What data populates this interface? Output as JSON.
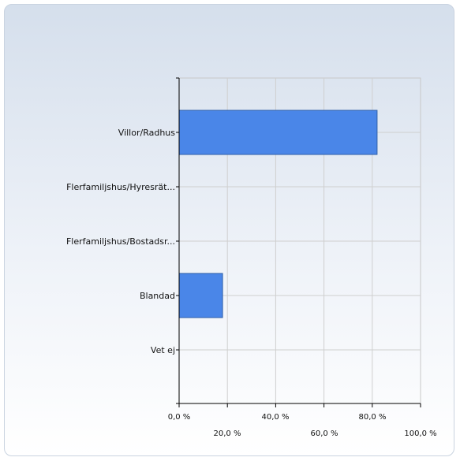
{
  "chart_data": {
    "type": "bar",
    "orientation": "horizontal",
    "categories": [
      "Villor/Radhus",
      "Flerfamiljshus/Hyresrät...",
      "Flerfamiljshus/Bostadsr...",
      "Blandad",
      "Vet ej"
    ],
    "values": [
      82.0,
      0,
      0,
      18.0,
      0
    ],
    "x_ticks": [
      "0,0 %",
      "20,0 %",
      "40,0 %",
      "60,0 %",
      "80,0 %",
      "100,0 %"
    ],
    "xlim": [
      0,
      100
    ],
    "grid": true,
    "bar_color": "#4a86e8"
  }
}
